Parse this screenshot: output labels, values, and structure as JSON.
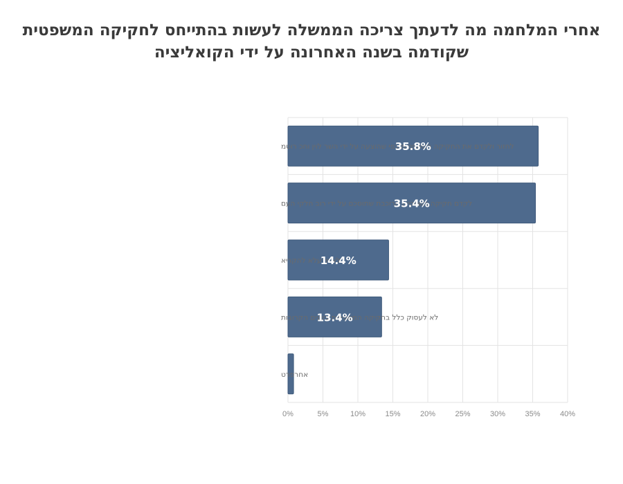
{
  "title_lines": [
    "אחרי המלחמה מה לדעתך צריכה הממשלה לעשות בהתייחס לחקיקה המשפטית",
    "שקודמה בשנה האחרונה על ידי הקואליציה"
  ],
  "colors": {
    "bar": "#4e6a8d",
    "bar_stroke": "#3f5a7b",
    "grid": "#e3e3e3"
  },
  "chart_data": {
    "type": "bar",
    "orientation": "horizontal",
    "title": "אחרי המלחמה מה לדעתך צריכה הממשלה לעשות בהתייחס לחקיקה המשפטית שקודמה בשנה האחרונה על ידי הקואליציה",
    "categories": [
      "לחזור ולקדם את החקיקה המשפטית כפי שהוצעה על ידי השר לוין וחכ רוטמ",
      "לקדם חקיקה משפטית מרוכבת שתוסכם על ידי רוב חלקי העם",
      "לא יודעלא להקריא",
      "לא לעסוק כלל בחקיקה המשפטית בשנים הקרובות",
      "אחרפרט"
    ],
    "values": [
      35.8,
      35.4,
      14.4,
      13.4,
      0.8
    ],
    "data_labels": [
      "35.8%",
      "35.4%",
      "14.4%",
      "13.4%",
      ""
    ],
    "xlim": [
      0,
      40
    ],
    "ticks": [
      0,
      5,
      10,
      15,
      20,
      25,
      30,
      35,
      40
    ],
    "tick_labels": [
      "0%",
      "5%",
      "10%",
      "15%",
      "20%",
      "25%",
      "30%",
      "35%",
      "40%"
    ],
    "grid": true,
    "legend": "none"
  }
}
